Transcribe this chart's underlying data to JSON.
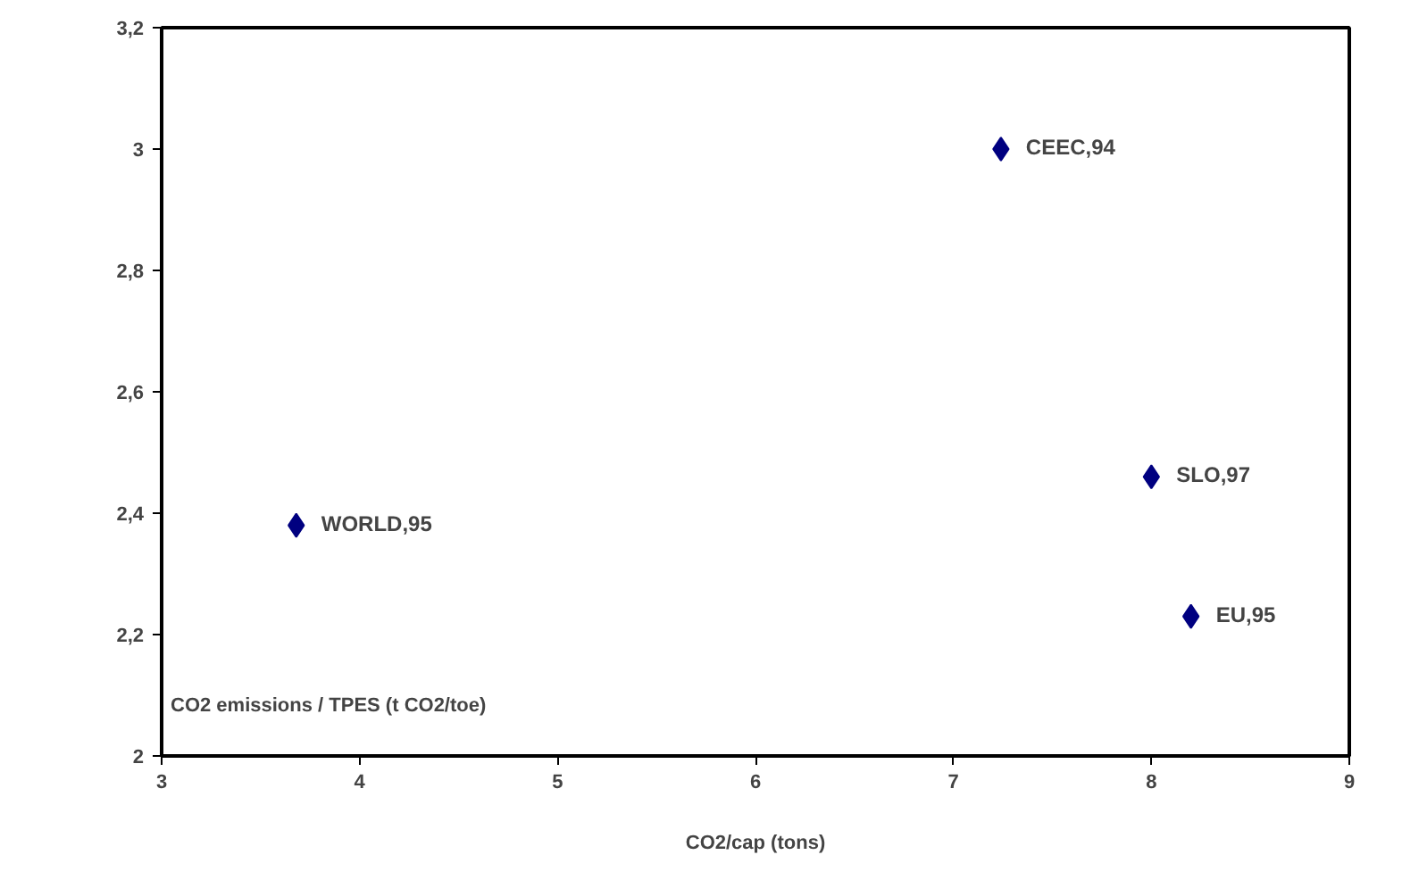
{
  "chart_data": {
    "type": "scatter",
    "xlabel": "CO2/cap (tons)",
    "ylabel": "CO2 emissions / TPES (t CO2/toe)",
    "x": [
      3.68,
      7.24,
      8.0,
      8.2
    ],
    "series": [
      {
        "color": "#000080",
        "values": [
          2.38,
          3.0,
          2.46,
          2.23
        ]
      }
    ],
    "annotations": [
      {
        "text": "WORLD,95",
        "x": 3.68,
        "y": 2.38
      },
      {
        "text": "CEEC,94",
        "x": 7.24,
        "y": 3.0
      },
      {
        "text": "SLO,97",
        "x": 8.0,
        "y": 2.46
      },
      {
        "text": "EU,95",
        "x": 8.2,
        "y": 2.23
      }
    ],
    "xlim": [
      3,
      9
    ],
    "ylim": [
      2,
      3.2
    ],
    "xticks": [
      {
        "value": 3,
        "label": "3"
      },
      {
        "value": 4,
        "label": "4"
      },
      {
        "value": 5,
        "label": "5"
      },
      {
        "value": 6,
        "label": "6"
      },
      {
        "value": 7,
        "label": "7"
      },
      {
        "value": 8,
        "label": "8"
      },
      {
        "value": 9,
        "label": "9"
      }
    ],
    "yticks": [
      {
        "value": 2,
        "label": "2"
      },
      {
        "value": 2.2,
        "label": "2,2"
      },
      {
        "value": 2.4,
        "label": "2,4"
      },
      {
        "value": 2.6,
        "label": "2,6"
      },
      {
        "value": 2.8,
        "label": "2,8"
      },
      {
        "value": 3,
        "label": "3"
      },
      {
        "value": 3.2,
        "label": "3,2"
      }
    ],
    "grid": false,
    "marker": "diamond"
  }
}
